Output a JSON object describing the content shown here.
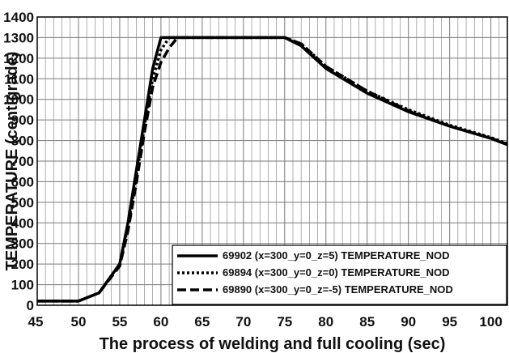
{
  "chart_data": {
    "type": "line",
    "xlabel": "The process of welding and full cooling (sec)",
    "ylabel": "TEMPERATURE (centigrade)",
    "xlim": [
      45,
      102
    ],
    "ylim": [
      0,
      1400
    ],
    "grid": true,
    "legend_position": "bottom-right",
    "x_ticks": [
      {
        "value": 45,
        "label": "45"
      },
      {
        "value": 50,
        "label": "50"
      },
      {
        "value": 55,
        "label": "55"
      },
      {
        "value": 60,
        "label": "60"
      },
      {
        "value": 65,
        "label": "65"
      },
      {
        "value": 70,
        "label": "70"
      },
      {
        "value": 75,
        "label": "75"
      },
      {
        "value": 80,
        "label": "80"
      },
      {
        "value": 85,
        "label": "85"
      },
      {
        "value": 90,
        "label": "90"
      },
      {
        "value": 95,
        "label": "95"
      },
      {
        "value": 100,
        "label": "100"
      }
    ],
    "y_ticks": [
      {
        "value": 0,
        "label": "0"
      },
      {
        "value": 100,
        "label": "100"
      },
      {
        "value": 200,
        "label": "200"
      },
      {
        "value": 300,
        "label": "300"
      },
      {
        "value": 400,
        "label": "400"
      },
      {
        "value": 500,
        "label": "500"
      },
      {
        "value": 600,
        "label": "600"
      },
      {
        "value": 700,
        "label": "700"
      },
      {
        "value": 800,
        "label": "800"
      },
      {
        "value": 900,
        "label": "900"
      },
      {
        "value": 1000,
        "label": "1000"
      },
      {
        "value": 1100,
        "label": "1100"
      },
      {
        "value": 1200,
        "label": "1200"
      },
      {
        "value": 1300,
        "label": "1300"
      },
      {
        "value": 1400,
        "label": "1400"
      }
    ],
    "series": [
      {
        "name": "69902 (x=300_y=0_z=5) TEMPERATURE_NOD",
        "style": "solid",
        "color": "#000000",
        "points": [
          [
            45,
            20
          ],
          [
            50,
            20
          ],
          [
            52.5,
            60
          ],
          [
            55,
            200
          ],
          [
            56,
            400
          ],
          [
            57,
            650
          ],
          [
            58,
            900
          ],
          [
            59,
            1150
          ],
          [
            60,
            1300
          ],
          [
            75,
            1300
          ],
          [
            77,
            1260
          ],
          [
            80,
            1150
          ],
          [
            85,
            1030
          ],
          [
            90,
            940
          ],
          [
            95,
            870
          ],
          [
            100,
            810
          ],
          [
            102,
            780
          ]
        ]
      },
      {
        "name": "69894 (x=300_y=0_z=0) TEMPERATURE_NOD",
        "style": "dotted",
        "color": "#000000",
        "points": [
          [
            45,
            20
          ],
          [
            50,
            20
          ],
          [
            52.5,
            60
          ],
          [
            55,
            200
          ],
          [
            56,
            380
          ],
          [
            57,
            620
          ],
          [
            58,
            870
          ],
          [
            59,
            1100
          ],
          [
            60,
            1240
          ],
          [
            61,
            1300
          ],
          [
            75,
            1300
          ],
          [
            77,
            1270
          ],
          [
            80,
            1160
          ],
          [
            85,
            1040
          ],
          [
            90,
            950
          ],
          [
            95,
            875
          ],
          [
            100,
            815
          ],
          [
            102,
            785
          ]
        ]
      },
      {
        "name": "69890 (x=300_y=0_z=-5) TEMPERATURE_NOD",
        "style": "dashed",
        "color": "#000000",
        "points": [
          [
            45,
            20
          ],
          [
            50,
            20
          ],
          [
            52.5,
            60
          ],
          [
            55,
            190
          ],
          [
            56,
            360
          ],
          [
            57,
            590
          ],
          [
            58,
            840
          ],
          [
            59,
            1060
          ],
          [
            60,
            1180
          ],
          [
            61,
            1250
          ],
          [
            62,
            1300
          ],
          [
            75,
            1300
          ],
          [
            77,
            1270
          ],
          [
            80,
            1160
          ],
          [
            85,
            1040
          ],
          [
            90,
            945
          ],
          [
            95,
            870
          ],
          [
            100,
            812
          ],
          [
            102,
            782
          ]
        ]
      }
    ]
  }
}
